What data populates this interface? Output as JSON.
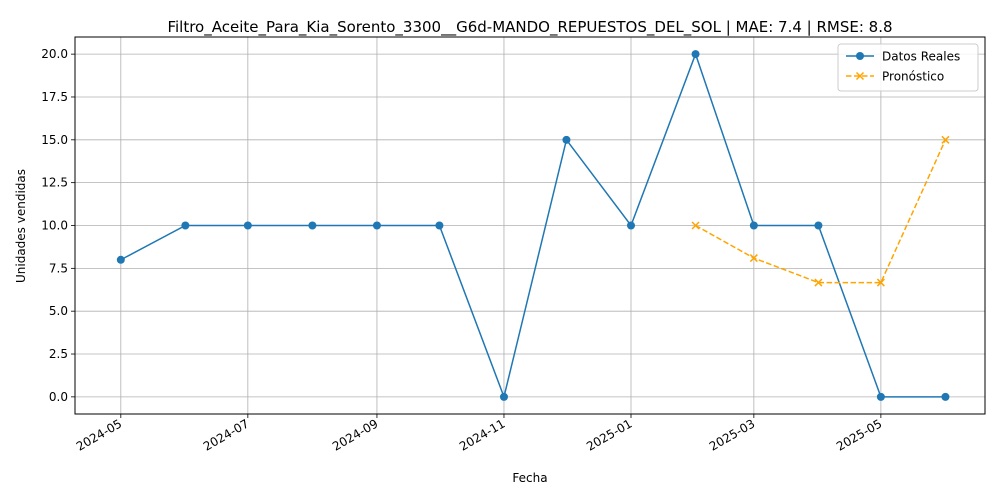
{
  "chart_data": {
    "type": "line",
    "title": "Filtro_Aceite_Para_Kia_Sorento_3300__G6d-MANDO_REPUESTOS_DEL_SOL | MAE: 7.4 | RMSE: 8.8",
    "xlabel": "Fecha",
    "ylabel": "Unidades vendidas",
    "xlim": [
      "2024-04-09",
      "2025-06-20"
    ],
    "ylim": [
      -1.0,
      21.0
    ],
    "x_ticks": [
      "2024-05",
      "2024-07",
      "2024-09",
      "2024-11",
      "2025-01",
      "2025-03",
      "2025-05"
    ],
    "y_ticks": [
      "0.0",
      "2.5",
      "5.0",
      "7.5",
      "10.0",
      "12.5",
      "15.0",
      "17.5",
      "20.0"
    ],
    "grid": true,
    "legend_position": "top-right",
    "series": [
      {
        "name": "Datos Reales",
        "color": "#1f77b4",
        "style": "solid",
        "marker": "circle",
        "x": [
          "2024-05-01",
          "2024-06-01",
          "2024-07-01",
          "2024-08-01",
          "2024-09-01",
          "2024-10-01",
          "2024-11-01",
          "2024-12-01",
          "2025-01-01",
          "2025-02-01",
          "2025-03-01",
          "2025-04-01",
          "2025-05-01",
          "2025-06-01"
        ],
        "y": [
          8,
          10,
          10,
          10,
          10,
          10,
          0,
          15,
          10,
          20,
          10,
          10,
          0,
          0
        ]
      },
      {
        "name": "Pronóstico",
        "color": "#ffa500",
        "style": "dashed",
        "marker": "x",
        "x": [
          "2025-02-01",
          "2025-03-01",
          "2025-04-01",
          "2025-05-01",
          "2025-06-01"
        ],
        "y": [
          10.0,
          8.1,
          6.67,
          6.67,
          15.0
        ]
      }
    ]
  }
}
